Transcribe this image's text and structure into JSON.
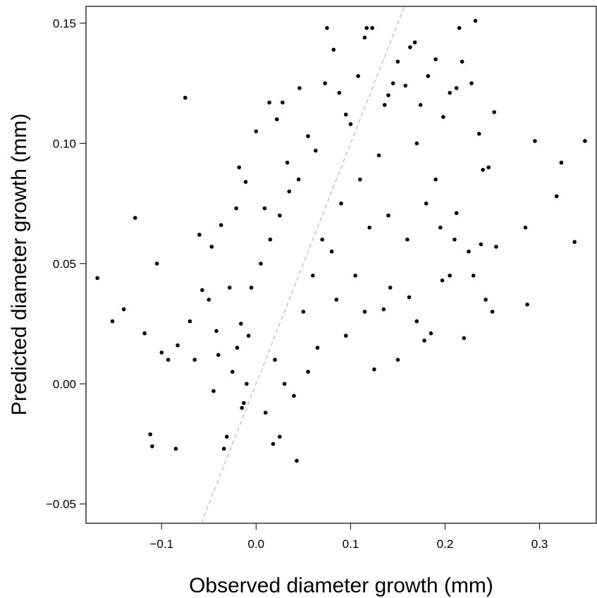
{
  "chart_data": {
    "type": "scatter",
    "title": "",
    "xlabel": "Observed diameter growth (mm)",
    "ylabel": "Predicted diameter growth (mm)",
    "xlim": [
      -0.18,
      0.36
    ],
    "ylim": [
      -0.058,
      0.157
    ],
    "x_ticks": [
      {
        "value": -0.1,
        "label": "−0.1"
      },
      {
        "value": 0.0,
        "label": "0.0"
      },
      {
        "value": 0.1,
        "label": "0.1"
      },
      {
        "value": 0.2,
        "label": "0.2"
      },
      {
        "value": 0.3,
        "label": "0.3"
      }
    ],
    "y_ticks": [
      {
        "value": -0.05,
        "label": "−0.05"
      },
      {
        "value": 0.0,
        "label": "0.00"
      },
      {
        "value": 0.05,
        "label": "0.05"
      },
      {
        "value": 0.1,
        "label": "0.10"
      },
      {
        "value": 0.15,
        "label": "0.15"
      }
    ],
    "grid": false,
    "legend": "none",
    "reference_line": {
      "style": "dashed",
      "color": "#aaaaaa",
      "from": [
        -0.058,
        -0.058
      ],
      "to": [
        0.157,
        0.157
      ]
    },
    "marker_color": "#000000",
    "points": [
      [
        -0.168,
        0.044
      ],
      [
        -0.152,
        0.026
      ],
      [
        -0.14,
        0.031
      ],
      [
        -0.128,
        0.069
      ],
      [
        -0.118,
        0.021
      ],
      [
        -0.112,
        -0.021
      ],
      [
        -0.11,
        -0.026
      ],
      [
        -0.105,
        0.05
      ],
      [
        -0.1,
        0.013
      ],
      [
        -0.093,
        0.01
      ],
      [
        -0.085,
        -0.027
      ],
      [
        -0.083,
        0.016
      ],
      [
        -0.075,
        0.119
      ],
      [
        -0.07,
        0.026
      ],
      [
        -0.065,
        0.01
      ],
      [
        -0.06,
        0.062
      ],
      [
        -0.057,
        0.039
      ],
      [
        -0.05,
        0.035
      ],
      [
        -0.047,
        0.057
      ],
      [
        -0.045,
        -0.003
      ],
      [
        -0.042,
        0.022
      ],
      [
        -0.04,
        0.012
      ],
      [
        -0.037,
        0.066
      ],
      [
        -0.034,
        -0.027
      ],
      [
        -0.031,
        -0.022
      ],
      [
        -0.028,
        0.04
      ],
      [
        -0.025,
        0.005
      ],
      [
        -0.021,
        0.073
      ],
      [
        -0.018,
        0.09
      ],
      [
        -0.016,
        0.025
      ],
      [
        -0.013,
        -0.008
      ],
      [
        -0.011,
        0.084
      ],
      [
        0.0,
        0.105
      ],
      [
        0.009,
        0.073
      ],
      [
        0.014,
        0.117
      ],
      [
        0.022,
        0.11
      ],
      [
        0.028,
        0.117
      ],
      [
        0.033,
        0.092
      ],
      [
        0.046,
        0.123
      ],
      [
        0.055,
        0.103
      ],
      [
        0.063,
        0.097
      ],
      [
        0.073,
        0.125
      ],
      [
        0.075,
        0.148
      ],
      [
        0.082,
        0.139
      ],
      [
        0.088,
        0.121
      ],
      [
        0.095,
        0.112
      ],
      [
        0.1,
        0.108
      ],
      [
        0.108,
        0.128
      ],
      [
        0.115,
        0.144
      ],
      [
        0.117,
        0.148
      ],
      [
        0.123,
        0.148
      ],
      [
        0.13,
        0.095
      ],
      [
        0.136,
        0.116
      ],
      [
        0.14,
        0.12
      ],
      [
        0.145,
        0.125
      ],
      [
        0.15,
        0.134
      ],
      [
        0.158,
        0.124
      ],
      [
        0.163,
        0.14
      ],
      [
        0.168,
        0.142
      ],
      [
        0.174,
        0.116
      ],
      [
        0.182,
        0.128
      ],
      [
        0.19,
        0.135
      ],
      [
        0.198,
        0.111
      ],
      [
        0.205,
        0.121
      ],
      [
        0.212,
        0.123
      ],
      [
        0.215,
        0.148
      ],
      [
        0.218,
        0.134
      ],
      [
        0.228,
        0.125
      ],
      [
        0.232,
        0.151
      ],
      [
        0.236,
        0.104
      ],
      [
        0.24,
        0.089
      ],
      [
        0.246,
        0.09
      ],
      [
        0.252,
        0.113
      ],
      [
        0.254,
        0.057
      ],
      [
        0.25,
        0.03
      ],
      [
        0.243,
        0.035
      ],
      [
        0.238,
        0.058
      ],
      [
        0.23,
        0.045
      ],
      [
        0.22,
        0.019
      ],
      [
        0.212,
        0.071
      ],
      [
        0.205,
        0.045
      ],
      [
        0.197,
        0.043
      ],
      [
        0.185,
        0.021
      ],
      [
        0.178,
        0.018
      ],
      [
        0.17,
        0.026
      ],
      [
        0.162,
        0.036
      ],
      [
        0.15,
        0.01
      ],
      [
        0.142,
        0.04
      ],
      [
        0.135,
        0.031
      ],
      [
        0.125,
        0.006
      ],
      [
        0.285,
        0.065
      ],
      [
        0.287,
        0.033
      ],
      [
        0.295,
        0.101
      ],
      [
        0.318,
        0.078
      ],
      [
        0.323,
        0.092
      ],
      [
        0.337,
        0.059
      ],
      [
        0.348,
        0.101
      ],
      [
        0.043,
        -0.032
      ],
      [
        0.018,
        -0.025
      ],
      [
        0.025,
        -0.022
      ],
      [
        0.05,
        0.03
      ],
      [
        0.06,
        0.045
      ],
      [
        0.07,
        0.06
      ],
      [
        0.08,
        0.055
      ],
      [
        0.09,
        0.075
      ],
      [
        0.11,
        0.085
      ],
      [
        0.12,
        0.065
      ],
      [
        0.14,
        0.07
      ],
      [
        0.16,
        0.06
      ],
      [
        0.18,
        0.075
      ],
      [
        0.195,
        0.065
      ],
      [
        0.21,
        0.06
      ],
      [
        0.225,
        0.055
      ],
      [
        0.19,
        0.085
      ],
      [
        0.17,
        0.1
      ],
      [
        0.105,
        0.045
      ],
      [
        0.115,
        0.03
      ],
      [
        0.095,
        0.02
      ],
      [
        0.085,
        0.035
      ],
      [
        0.065,
        0.015
      ],
      [
        0.055,
        0.005
      ],
      [
        0.04,
        -0.005
      ],
      [
        0.03,
        0.0
      ],
      [
        0.02,
        0.01
      ],
      [
        0.01,
        -0.012
      ],
      [
        0.005,
        0.05
      ],
      [
        0.015,
        0.06
      ],
      [
        0.025,
        0.07
      ],
      [
        0.035,
        0.08
      ],
      [
        0.045,
        0.085
      ],
      [
        -0.005,
        0.04
      ],
      [
        -0.008,
        0.02
      ],
      [
        -0.01,
        0.0
      ],
      [
        -0.015,
        -0.01
      ],
      [
        -0.02,
        0.015
      ]
    ]
  }
}
